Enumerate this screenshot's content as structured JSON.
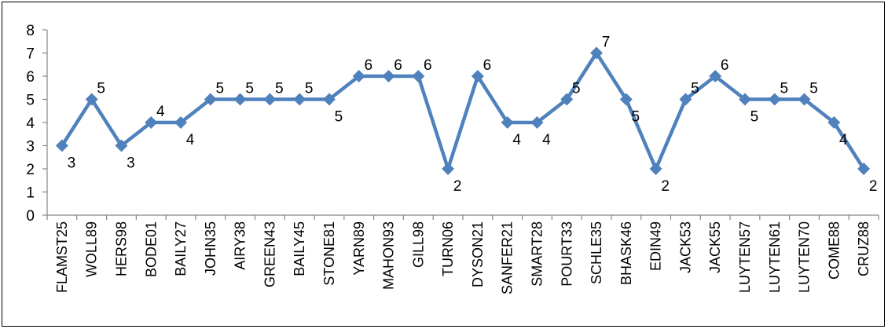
{
  "chart_data": {
    "type": "line",
    "title": "",
    "xlabel": "",
    "ylabel": "",
    "ylim": [
      0,
      8
    ],
    "yticks": [
      0,
      1,
      2,
      3,
      4,
      5,
      6,
      7,
      8
    ],
    "grid": false,
    "legend": "none",
    "line_color": "#4F81BD",
    "categories": [
      "FLAMST25",
      "WOLL89",
      "HERS98",
      "BODE01",
      "BAILY27",
      "JOHN35",
      "AIRY38",
      "GREEN43",
      "BAILY45",
      "STONE81",
      "YARN89",
      "MAHON93",
      "GILL98",
      "TURN06",
      "DYSON21",
      "SANFER21",
      "SMART28",
      "POURT33",
      "SCHLE35",
      "BHASK46",
      "EDIN49",
      "JACK53",
      "JACK55",
      "LUYTEN57",
      "LUYTEN61",
      "LUYTEN70",
      "COME88",
      "CRUZ88"
    ],
    "series": [
      {
        "values": [
          3,
          5,
          3,
          4,
          4,
          5,
          5,
          5,
          5,
          5,
          6,
          6,
          6,
          2,
          6,
          4,
          4,
          5,
          7,
          5,
          2,
          5,
          6,
          5,
          5,
          5,
          4,
          2
        ]
      }
    ]
  }
}
